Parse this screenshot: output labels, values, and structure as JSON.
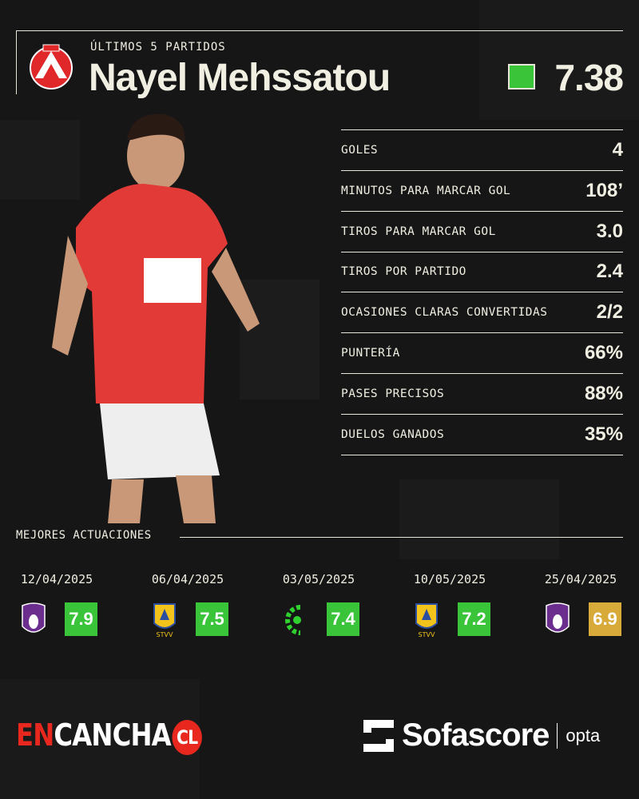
{
  "header": {
    "subtitle": "ÚLTIMOS 5 PARTIDOS",
    "player_name": "Nayel Mehssatou",
    "average_rating": "7.38",
    "rating_color": "#3ac43a",
    "club_badge": "kv-kortrijk-badge"
  },
  "stats": [
    {
      "label": "GOLES",
      "value": "4"
    },
    {
      "label": "MINUTOS PARA MARCAR GOL",
      "value": "108’"
    },
    {
      "label": "TIROS PARA MARCAR GOL",
      "value": "3.0"
    },
    {
      "label": "TIROS POR PARTIDO",
      "value": "2.4"
    },
    {
      "label": "OCASIONES CLARAS CONVERTIDAS",
      "value": "2/2"
    },
    {
      "label": "PUNTERÍA",
      "value": "66%"
    },
    {
      "label": "PASES PRECISOS",
      "value": "88%"
    },
    {
      "label": "DUELOS GANADOS",
      "value": "35%"
    }
  ],
  "best": {
    "title": "MEJORES ACTUACIONES",
    "matches": [
      {
        "date": "12/04/2025",
        "opponent_badge": "beerschot-badge",
        "rating": "7.9",
        "color": "#3ac43a"
      },
      {
        "date": "06/04/2025",
        "opponent_badge": "stvv-badge",
        "rating": "7.5",
        "color": "#3ac43a"
      },
      {
        "date": "03/05/2025",
        "opponent_badge": "cercle-brugge-badge",
        "rating": "7.4",
        "color": "#3ac43a"
      },
      {
        "date": "10/05/2025",
        "opponent_badge": "stvv-badge",
        "rating": "7.2",
        "color": "#3ac43a"
      },
      {
        "date": "25/04/2025",
        "opponent_badge": "beerschot-badge",
        "rating": "6.9",
        "color": "#d8aa3a"
      }
    ]
  },
  "footer": {
    "brand_en": "EN",
    "brand_cancha": "CANCHA",
    "brand_cl": "CL",
    "sofascore": "Sofascore",
    "opta": "opta"
  }
}
